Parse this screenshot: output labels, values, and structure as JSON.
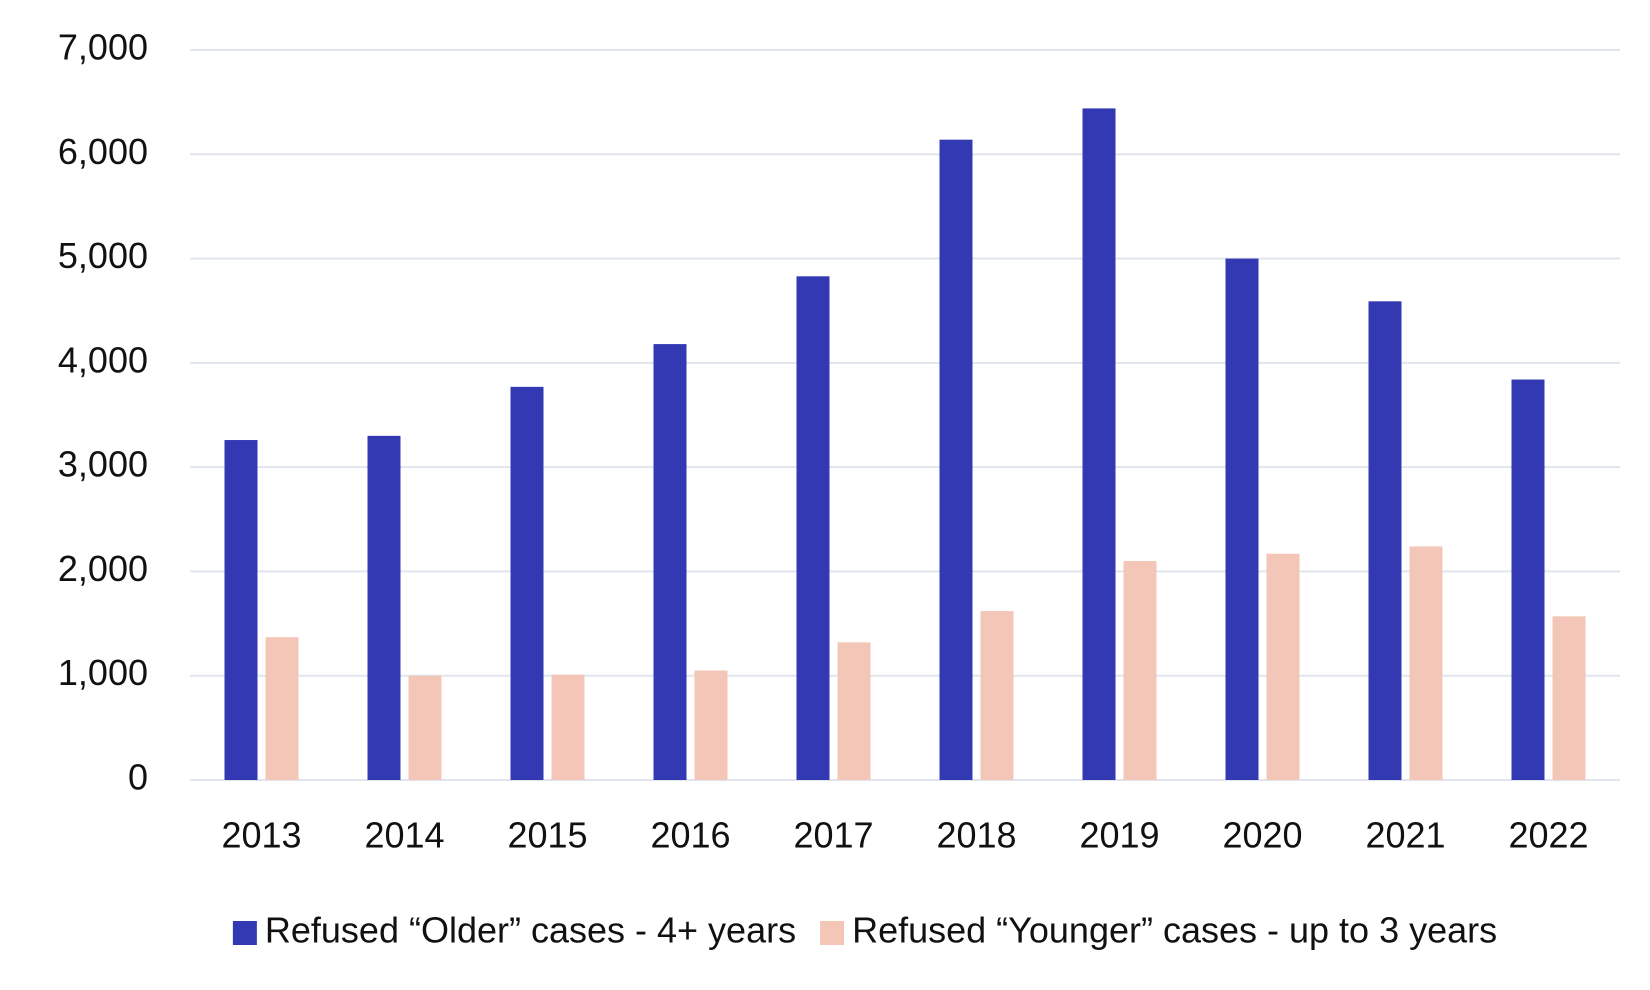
{
  "chart_data": {
    "type": "bar",
    "categories": [
      "2013",
      "2014",
      "2015",
      "2016",
      "2017",
      "2018",
      "2019",
      "2020",
      "2021",
      "2022"
    ],
    "series": [
      {
        "name": "Refused “Older” cases - 4+ years",
        "color": "#3239b3",
        "values": [
          3260,
          3300,
          3770,
          4180,
          4830,
          6140,
          6440,
          5000,
          4590,
          3840
        ]
      },
      {
        "name": "Refused “Younger” cases - up to 3 years",
        "color": "#f4c6b8",
        "values": [
          1370,
          1000,
          1010,
          1050,
          1320,
          1620,
          2100,
          2170,
          2240,
          1570
        ]
      }
    ],
    "ylim": [
      0,
      7000
    ],
    "yticks": [
      0,
      {
        "value": 1000,
        "label": "1,000"
      },
      {
        "value": 2000,
        "label": "2,000"
      },
      {
        "value": 3000,
        "label": "3,000"
      },
      {
        "value": 4000,
        "label": "4,000"
      },
      {
        "value": 5000,
        "label": "5,000"
      },
      {
        "value": 6000,
        "label": "6,000"
      },
      {
        "value": 7000,
        "label": "7,000"
      }
    ],
    "grid": true,
    "legend": "bottom"
  }
}
